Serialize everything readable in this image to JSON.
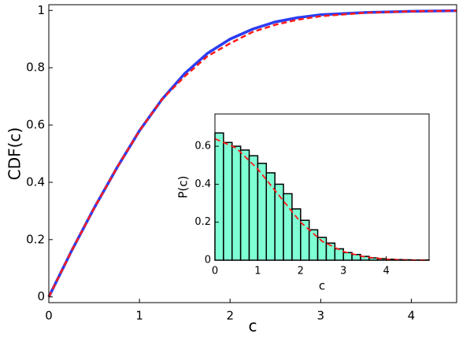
{
  "chart_data": [
    {
      "type": "line",
      "x_label": "c",
      "y_label": "CDF(c)",
      "x": [
        0,
        0.25,
        0.5,
        0.75,
        1,
        1.25,
        1.5,
        1.75,
        2,
        2.25,
        2.5,
        2.75,
        3,
        3.5,
        4,
        4.5
      ],
      "series": [
        {
          "color": "#2a3cf2",
          "style": "solid",
          "values": [
            0,
            0.16,
            0.31,
            0.45,
            0.58,
            0.69,
            0.78,
            0.85,
            0.9,
            0.935,
            0.96,
            0.975,
            0.985,
            0.993,
            0.997,
            0.999
          ]
        },
        {
          "color": "#ff1a1a",
          "style": "dashed",
          "values": [
            0,
            0.16,
            0.31,
            0.45,
            0.58,
            0.69,
            0.77,
            0.84,
            0.885,
            0.925,
            0.95,
            0.968,
            0.98,
            0.992,
            0.997,
            0.999
          ]
        }
      ],
      "xlim": [
        0,
        4.5
      ],
      "ylim": [
        -0.02,
        1.02
      ],
      "xticks": [
        0,
        1,
        2,
        3,
        4
      ],
      "yticks": [
        0,
        0.2,
        0.4,
        0.6,
        0.8,
        1
      ]
    },
    {
      "type": "histogram",
      "x_label": "c",
      "y_label": "P(c)",
      "bins": [
        0,
        0.2,
        0.4,
        0.6,
        0.8,
        1.0,
        1.2,
        1.4,
        1.6,
        1.8,
        2.0,
        2.2,
        2.4,
        2.6,
        2.8,
        3.0,
        3.2,
        3.4,
        3.6,
        3.8,
        4.0,
        4.2,
        4.4,
        4.6,
        4.8,
        5.0
      ],
      "values": [
        0.67,
        0.62,
        0.6,
        0.58,
        0.55,
        0.51,
        0.46,
        0.4,
        0.35,
        0.27,
        0.21,
        0.16,
        0.12,
        0.09,
        0.06,
        0.04,
        0.03,
        0.02,
        0.012,
        0.008,
        0.005,
        0.003,
        0.002,
        0.001,
        0.001
      ],
      "color": "#7fffd4",
      "edge_color": "#000000",
      "line": {
        "color": "#ff1a1a",
        "style": "dashed",
        "x": [
          0,
          0.5,
          1,
          1.5,
          2,
          2.5,
          3,
          3.5,
          4,
          4.5,
          5
        ],
        "values": [
          0.64,
          0.59,
          0.48,
          0.34,
          0.2,
          0.1,
          0.045,
          0.017,
          0.005,
          0.001,
          0
        ]
      },
      "xlim": [
        0,
        5
      ],
      "ylim": [
        0,
        0.77
      ],
      "xticks": [
        0,
        1,
        2,
        3,
        4
      ],
      "yticks": [
        0,
        0.2,
        0.4,
        0.6
      ]
    }
  ]
}
